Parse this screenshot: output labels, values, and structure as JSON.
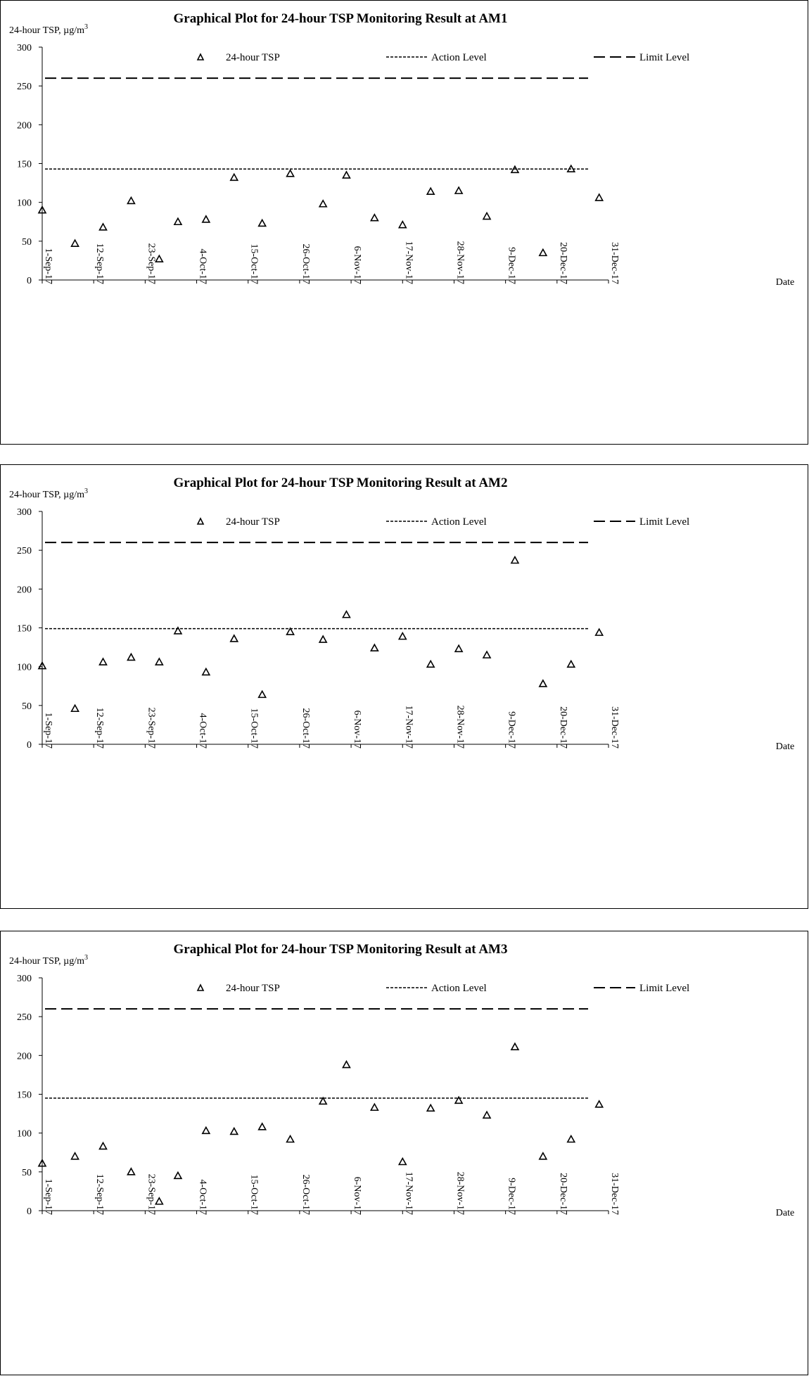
{
  "chart_data": [
    {
      "type": "scatter",
      "title": "Graphical Plot for 24-hour TSP Monitoring Result at AM1",
      "ylabel": "24-hour TSP, µg/m",
      "ylabel_sup": "3",
      "xlabel": "Date",
      "ylim": [
        0,
        300
      ],
      "yticks": [
        "0",
        "50",
        "100",
        "150",
        "200",
        "250",
        "300"
      ],
      "xlim": [
        "2017-09-01",
        "2017-12-31"
      ],
      "xticks": [
        "1-Sep-17",
        "12-Sep-17",
        "23-Sep-17",
        "4-Oct-17",
        "15-Oct-17",
        "26-Oct-17",
        "6-Nov-17",
        "17-Nov-17",
        "28-Nov-17",
        "9-Dec-17",
        "20-Dec-17",
        "31-Dec-17"
      ],
      "legend": [
        "24-hour TSP",
        "Action Level",
        "Limit Level"
      ],
      "legend_position": "top",
      "action_level": 143,
      "limit_level": 260,
      "x": [
        "2017-09-01",
        "2017-09-08",
        "2017-09-14",
        "2017-09-20",
        "2017-09-26",
        "2017-09-30",
        "2017-10-06",
        "2017-10-12",
        "2017-10-18",
        "2017-10-24",
        "2017-10-31",
        "2017-11-05",
        "2017-11-11",
        "2017-11-17",
        "2017-11-23",
        "2017-11-29",
        "2017-12-05",
        "2017-12-11",
        "2017-12-17",
        "2017-12-23",
        "2017-12-29"
      ],
      "y": [
        90,
        47,
        68,
        102,
        27,
        75,
        78,
        132,
        73,
        137,
        98,
        135,
        80,
        71,
        114,
        115,
        82,
        142,
        35,
        143,
        106
      ]
    },
    {
      "type": "scatter",
      "title": "Graphical Plot for 24-hour TSP Monitoring Result at AM2",
      "ylabel": "24-hour TSP, µg/m",
      "ylabel_sup": "3",
      "xlabel": "Date",
      "ylim": [
        0,
        300
      ],
      "yticks": [
        "0",
        "50",
        "100",
        "150",
        "200",
        "250",
        "300"
      ],
      "xlim": [
        "2017-09-01",
        "2017-12-31"
      ],
      "xticks": [
        "1-Sep-17",
        "12-Sep-17",
        "23-Sep-17",
        "4-Oct-17",
        "15-Oct-17",
        "26-Oct-17",
        "6-Nov-17",
        "17-Nov-17",
        "28-Nov-17",
        "9-Dec-17",
        "20-Dec-17",
        "31-Dec-17"
      ],
      "legend": [
        "24-hour TSP",
        "Action Level",
        "Limit Level"
      ],
      "legend_position": "top",
      "action_level": 149,
      "limit_level": 260,
      "x": [
        "2017-09-01",
        "2017-09-08",
        "2017-09-14",
        "2017-09-20",
        "2017-09-26",
        "2017-09-30",
        "2017-10-06",
        "2017-10-12",
        "2017-10-18",
        "2017-10-24",
        "2017-10-31",
        "2017-11-05",
        "2017-11-11",
        "2017-11-17",
        "2017-11-23",
        "2017-11-29",
        "2017-12-05",
        "2017-12-11",
        "2017-12-17",
        "2017-12-23",
        "2017-12-29"
      ],
      "y": [
        101,
        46,
        106,
        112,
        106,
        146,
        93,
        136,
        64,
        145,
        135,
        167,
        124,
        139,
        103,
        123,
        115,
        237,
        78,
        103,
        144
      ]
    },
    {
      "type": "scatter",
      "title": "Graphical Plot for 24-hour TSP Monitoring Result at AM3",
      "ylabel": "24-hour TSP, µg/m",
      "ylabel_sup": "3",
      "xlabel": "Date",
      "ylim": [
        0,
        300
      ],
      "yticks": [
        "0",
        "50",
        "100",
        "150",
        "200",
        "250",
        "300"
      ],
      "xlim": [
        "2017-09-01",
        "2017-12-31"
      ],
      "xticks": [
        "1-Sep-17",
        "12-Sep-17",
        "23-Sep-17",
        "4-Oct-17",
        "15-Oct-17",
        "26-Oct-17",
        "6-Nov-17",
        "17-Nov-17",
        "28-Nov-17",
        "9-Dec-17",
        "20-Dec-17",
        "31-Dec-17"
      ],
      "legend": [
        "24-hour TSP",
        "Action Level",
        "Limit Level"
      ],
      "legend_position": "top",
      "action_level": 145,
      "limit_level": 260,
      "x": [
        "2017-09-01",
        "2017-09-08",
        "2017-09-14",
        "2017-09-20",
        "2017-09-26",
        "2017-09-30",
        "2017-10-06",
        "2017-10-12",
        "2017-10-18",
        "2017-10-24",
        "2017-10-31",
        "2017-11-05",
        "2017-11-11",
        "2017-11-17",
        "2017-11-23",
        "2017-11-29",
        "2017-12-05",
        "2017-12-11",
        "2017-12-17",
        "2017-12-23",
        "2017-12-29"
      ],
      "y": [
        61,
        70,
        83,
        50,
        12,
        45,
        103,
        102,
        108,
        92,
        141,
        188,
        133,
        63,
        132,
        142,
        123,
        211,
        70,
        92,
        137
      ]
    }
  ]
}
